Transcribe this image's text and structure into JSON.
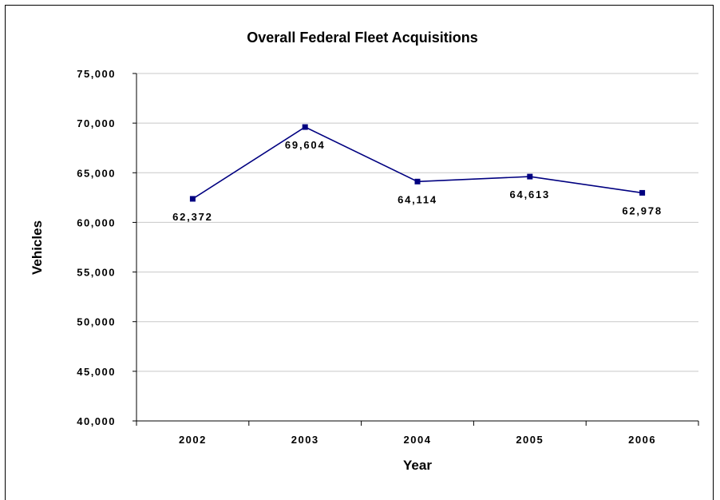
{
  "chart_data": {
    "type": "line",
    "title": "Overall Federal Fleet Acquisitions",
    "xlabel": "Year",
    "ylabel": "Vehicles",
    "categories": [
      "2002",
      "2003",
      "2004",
      "2005",
      "2006"
    ],
    "series": [
      {
        "values": [
          62372,
          69604,
          64114,
          64613,
          62978
        ],
        "data_labels": [
          "62,372",
          "69,604",
          "64,114",
          "64,613",
          "62,978"
        ],
        "color": "#000080"
      }
    ],
    "ylim": [
      40000,
      75000
    ],
    "yticks": [
      40000,
      45000,
      50000,
      55000,
      60000,
      65000,
      70000,
      75000
    ],
    "ytick_labels": [
      "40,000",
      "45,000",
      "50,000",
      "55,000",
      "60,000",
      "65,000",
      "70,000",
      "75,000"
    ],
    "grid": true,
    "legend": "none"
  }
}
